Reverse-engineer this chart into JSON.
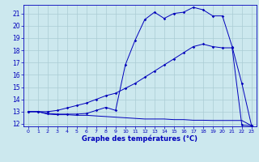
{
  "title": "Graphe des températures (°C)",
  "bg_color": "#cce8ee",
  "grid_color": "#aaccd4",
  "line_color": "#0000bb",
  "xlim": [
    -0.5,
    23.5
  ],
  "ylim": [
    11.8,
    21.7
  ],
  "yticks": [
    12,
    13,
    14,
    15,
    16,
    17,
    18,
    19,
    20,
    21
  ],
  "xticks": [
    0,
    1,
    2,
    3,
    4,
    5,
    6,
    7,
    8,
    9,
    10,
    11,
    12,
    13,
    14,
    15,
    16,
    17,
    18,
    19,
    20,
    21,
    22,
    23
  ],
  "line1_x": [
    0,
    1,
    2,
    3,
    4,
    5,
    6,
    7,
    8,
    9,
    10,
    11,
    12,
    13,
    14,
    15,
    16,
    17,
    18,
    19,
    20,
    21,
    22,
    23
  ],
  "line1_y": [
    13.0,
    13.0,
    12.85,
    12.8,
    12.8,
    12.8,
    12.85,
    13.1,
    13.35,
    13.1,
    16.8,
    18.8,
    20.5,
    21.1,
    20.6,
    21.0,
    21.1,
    21.5,
    21.3,
    20.8,
    20.8,
    18.3,
    15.3,
    11.85
  ],
  "line2_x": [
    0,
    1,
    2,
    3,
    4,
    5,
    6,
    7,
    8,
    9,
    10,
    11,
    12,
    13,
    14,
    15,
    16,
    17,
    18,
    19,
    20,
    21,
    22,
    23
  ],
  "line2_y": [
    13.0,
    13.0,
    13.0,
    13.1,
    13.3,
    13.5,
    13.7,
    14.0,
    14.3,
    14.5,
    14.9,
    15.3,
    15.8,
    16.3,
    16.8,
    17.3,
    17.8,
    18.3,
    18.5,
    18.3,
    18.2,
    18.2,
    11.9,
    11.85
  ],
  "line3_x": [
    0,
    1,
    2,
    3,
    4,
    5,
    6,
    7,
    8,
    9,
    10,
    11,
    12,
    13,
    14,
    15,
    16,
    17,
    18,
    19,
    20,
    21,
    22,
    23
  ],
  "line3_y": [
    13.0,
    13.0,
    12.8,
    12.75,
    12.75,
    12.7,
    12.7,
    12.65,
    12.6,
    12.55,
    12.5,
    12.45,
    12.4,
    12.4,
    12.4,
    12.35,
    12.35,
    12.3,
    12.3,
    12.28,
    12.28,
    12.28,
    12.28,
    11.85
  ]
}
